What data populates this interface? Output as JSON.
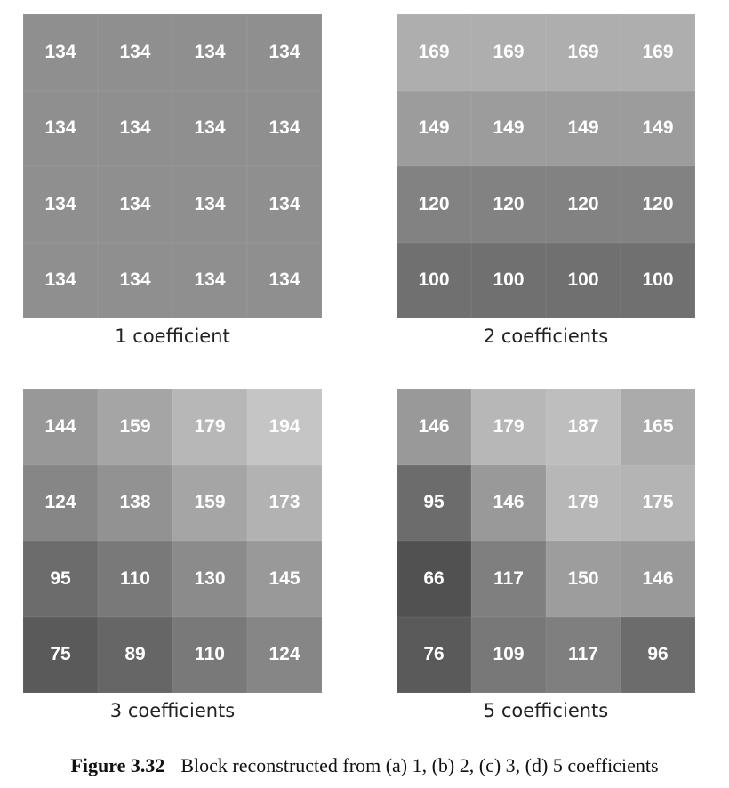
{
  "panels": [
    {
      "caption": "1 coefficient",
      "values": [
        [
          134,
          134,
          134,
          134
        ],
        [
          134,
          134,
          134,
          134
        ],
        [
          134,
          134,
          134,
          134
        ],
        [
          134,
          134,
          134,
          134
        ]
      ]
    },
    {
      "caption": "2 coefficients",
      "values": [
        [
          169,
          169,
          169,
          169
        ],
        [
          149,
          149,
          149,
          149
        ],
        [
          120,
          120,
          120,
          120
        ],
        [
          100,
          100,
          100,
          100
        ]
      ]
    },
    {
      "caption": "3 coefficients",
      "values": [
        [
          144,
          159,
          179,
          194
        ],
        [
          124,
          138,
          159,
          173
        ],
        [
          95,
          110,
          130,
          145
        ],
        [
          75,
          89,
          110,
          124
        ]
      ]
    },
    {
      "caption": "5 coefficients",
      "values": [
        [
          146,
          179,
          187,
          165
        ],
        [
          95,
          146,
          179,
          175
        ],
        [
          66,
          117,
          150,
          146
        ],
        [
          76,
          109,
          117,
          96
        ]
      ]
    }
  ],
  "figure": {
    "label": "Figure 3.32",
    "text": "Block reconstructed from (a) 1, (b) 2, (c) 3, (d) 5 coefficients"
  }
}
